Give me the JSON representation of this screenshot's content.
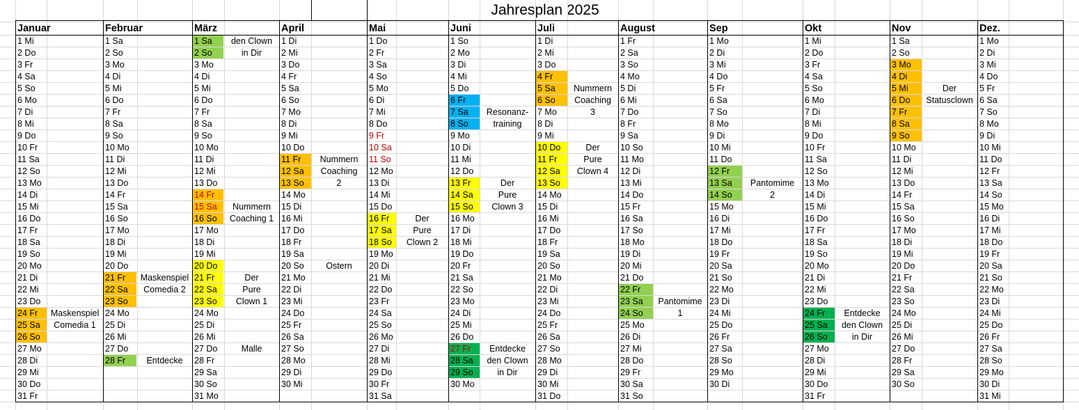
{
  "title": "Jahresplan 2025",
  "colors": {
    "orange": "#ffc000",
    "lightgreen": "#92d050",
    "green": "#00b050",
    "yellow": "#ffff00",
    "blue": "#00b0f0",
    "red_text": "#c00000"
  },
  "months": [
    {
      "name": "Januar",
      "days": [
        "1 Mi",
        "2 Do",
        "3 Fr",
        "4 Sa",
        "5 So",
        "6 Mo",
        "7 Di",
        "8 Mi",
        "9 Do",
        "10 Fr",
        "11 Sa",
        "12 So",
        "13 Mo",
        "14 Di",
        "15 Mi",
        "16 Do",
        "17 Fr",
        "18 Sa",
        "19 So",
        "20 Mo",
        "21 Di",
        "22 Mi",
        "23 Do",
        "24 Fr",
        "25 Sa",
        "26 So",
        "27 Mo",
        "28 Di",
        "29 Mi",
        "30 Do",
        "31 Fr"
      ]
    },
    {
      "name": "Februar",
      "days": [
        "1 Sa",
        "2 So",
        "3 Mo",
        "4 Di",
        "5 Mi",
        "6 Do",
        "7 Fr",
        "8 Sa",
        "9 So",
        "10 Mo",
        "11 Di",
        "12 Mi",
        "13 Do",
        "14 Fr",
        "15 Sa",
        "16 So",
        "17 Mo",
        "18 Di",
        "19 Mi",
        "20 Do",
        "21 Fr",
        "22 Sa",
        "23 So",
        "24 Mo",
        "25 Di",
        "26 Mi",
        "27 Do",
        "28 Fr"
      ]
    },
    {
      "name": "März",
      "days": [
        "1 Sa",
        "2 So",
        "3 Mo",
        "4 Di",
        "5 Mi",
        "6 Do",
        "7 Fr",
        "8 Sa",
        "9 So",
        "10 Mo",
        "11 Di",
        "12 Mi",
        "13 Do",
        "14 Fr",
        "15 Sa",
        "16 So",
        "17 Mo",
        "18 Di",
        "19 Mi",
        "20 Do",
        "21 Fr",
        "22 Sa",
        "23 So",
        "24 Mo",
        "25 Di",
        "26 Mi",
        "27 Do",
        "28 Fr",
        "29 Sa",
        "30 So",
        "31 Mo"
      ]
    },
    {
      "name": "April",
      "days": [
        "1 Di",
        "2 Mi",
        "3 Do",
        "4 Fr",
        "5 Sa",
        "6  So",
        "7 Mo",
        "8 Di",
        "9 Mi",
        "10 Do",
        "11 Fr",
        "12 Sa",
        "13 So",
        "14 Mo",
        "15 Di",
        "16 Mi",
        "17 Do",
        "18 Fr",
        "19 Sa",
        "20 So",
        "21 Mo",
        "22 Di",
        "23 Mi",
        "24 Do",
        "25 Fr",
        "26 Sa",
        "27 So",
        "28 Mo",
        "29 Di",
        "30 Mi"
      ]
    },
    {
      "name": "Mai",
      "days": [
        "1 Do",
        "2 Fr",
        "3 Sa",
        "4 So",
        "5 Mo",
        "6 Di",
        "7 Mi",
        "8 Do",
        "9 Fr",
        "10 Sa",
        "11 So",
        "12 Mo",
        "13 Di",
        "14 Mi",
        "15 Do",
        "16 Fr",
        "17 Sa",
        "18 So",
        "19 Mo",
        "20 Di",
        "21 Mi",
        "22 Do",
        "23 Fr",
        "24 Sa",
        "25 So",
        "26 Mo",
        "27 Di",
        "28 Mi",
        "29 Do",
        "30 Fr",
        "31 Sa"
      ]
    },
    {
      "name": "Juni",
      "days": [
        "1 So",
        "2 Mo",
        "3 Di",
        "4 Mi",
        "5 Do",
        "6 Fr",
        "7 Sa",
        "8 So",
        "9 Mo",
        "10 Di",
        "11 Mi",
        "12 Do",
        "13 Fr",
        "14 Sa",
        "15 So",
        "16 Mo",
        "17 Di",
        "18 Mi",
        "19 Do",
        "20 Fr",
        "21 Sa",
        "22 So",
        "23 Mo",
        "24 Di",
        "25 Mi",
        "26 Do",
        "27 Fr",
        "28 Sa",
        "29 So",
        "30 Mo"
      ]
    },
    {
      "name": "Juli",
      "days": [
        "1 Di",
        "2 Mi",
        "3 Do",
        "4 Fr",
        "5 Sa",
        "6  So",
        "7 Mo",
        "8 Di",
        "9 Mi",
        "10 Do",
        "11 Fr",
        "12 Sa",
        "13 So",
        "14 Mo",
        "15 Di",
        "16 Mi",
        "17 Do",
        "18 Fr",
        "19 Sa",
        "20 So",
        "21 Mo",
        "22 Di",
        "23 Mi",
        "24 Do",
        "25 Fr",
        "26 Sa",
        "27 So",
        "28 Mo",
        "29 Di",
        "30 Mi",
        "31 Do"
      ]
    },
    {
      "name": "August",
      "days": [
        "1 Fr",
        "2 Sa",
        "3 So",
        "4 Mo",
        "5 Di",
        "6 Mi",
        "7 Do",
        "8 Fr",
        "9 Sa",
        "10 So",
        "11 Mo",
        "12 Di",
        "13 Mi",
        "14 Do",
        "15 Fr",
        "16 Sa",
        "17 So",
        "18 Mo",
        "19 Di",
        "20 Mi",
        "21 Do",
        "22 Fr",
        "23 Sa",
        "24 So",
        "25 Mo",
        "26 Di",
        "27 Mi",
        "28 Do",
        "29 Fr",
        "30 Sa",
        "31 So"
      ]
    },
    {
      "name": "Sep",
      "days": [
        "1 Mo",
        "2 Di",
        "3 Mi",
        "4 Do",
        "5 Fr",
        "6 Sa",
        "7 So",
        "8 Mo",
        "9 Di",
        "10 Mi",
        "11 Do",
        "12 Fr",
        "13 Sa",
        "14 So",
        "15 Mo",
        "16 Di",
        "17 Mi",
        "18 Do",
        "19 Fr",
        "20 Sa",
        "21 So",
        "22 Mo",
        "23 Di",
        "24 Mi",
        "25 Do",
        "26 Fr",
        "27 Sa",
        "28 So",
        "29 Mo",
        "30 Di"
      ]
    },
    {
      "name": "Okt",
      "days": [
        "1 Mi",
        "2 Do",
        "3 Fr",
        "4 Sa",
        "5 So",
        "6 Mo",
        "7 Di",
        "8 Mi",
        "9 Do",
        "10 Fr",
        "11 Sa",
        "12 So",
        "13 Mo",
        "14 Di",
        "15 Mi",
        "16 Do",
        "17 Fr",
        "18 Sa",
        "19 So",
        "20 Mo",
        "21 Di",
        "22 Mi",
        "23 Do",
        "24 Fr",
        "25 Sa",
        "26 So",
        "27 Mo",
        "28 Di",
        "29 Mi",
        "30 Do",
        "31 Fr"
      ]
    },
    {
      "name": "Nov",
      "days": [
        "1 Sa",
        "2 So",
        "3 Mo",
        "4 Di",
        "5 Mi",
        "6 Do",
        "7 Fr",
        "8 Sa",
        "9 So",
        "10 Mo",
        "11 Di",
        "12 Mi",
        "13 Do",
        "14 Fr",
        "15 Sa",
        "16 So",
        "17 Mo",
        "18 Di",
        "19 Mi",
        "20 Do",
        "21 Fr",
        "22 Sa",
        "23 So",
        "24 Mo",
        "25 Di",
        "26 Mi",
        "27 Do",
        "28 Fr",
        "29 Sa",
        "30 So"
      ]
    },
    {
      "name": "Dez.",
      "days": [
        "1 Mo",
        "2 Di",
        "3 Mi",
        "4 Do",
        "5 Fr",
        "6 Sa",
        "7 So",
        "8 Mo",
        "9 Di",
        "10 Mi",
        "11 Do",
        "12 Fr",
        "13 Sa",
        "14 So",
        "15 Mo",
        "16 Di",
        "17 Mi",
        "18 Do",
        "19 Fr",
        "20 Sa",
        "21 So",
        "22 Mo",
        "23 Di",
        "24 Mi",
        "25 Do",
        "26 Fr",
        "27 Sa",
        "28 So",
        "29 Mo",
        "30 Di",
        "31 Mi"
      ]
    }
  ],
  "highlights": [
    {
      "month": 0,
      "days": [
        24,
        25,
        26
      ],
      "color": "orange"
    },
    {
      "month": 1,
      "days": [
        21,
        22,
        23
      ],
      "color": "orange"
    },
    {
      "month": 1,
      "days": [
        28
      ],
      "color": "lightgreen"
    },
    {
      "month": 2,
      "days": [
        1,
        2
      ],
      "color": "lightgreen"
    },
    {
      "month": 2,
      "days": [
        14,
        15,
        16
      ],
      "color": "orange"
    },
    {
      "month": 2,
      "days": [
        20,
        21,
        22,
        23
      ],
      "color": "yellow"
    },
    {
      "month": 3,
      "days": [
        11,
        12,
        13
      ],
      "color": "orange"
    },
    {
      "month": 4,
      "days": [
        16,
        17,
        18
      ],
      "color": "yellow"
    },
    {
      "month": 5,
      "days": [
        6,
        7,
        8
      ],
      "color": "blue"
    },
    {
      "month": 5,
      "days": [
        13,
        14,
        15
      ],
      "color": "yellow"
    },
    {
      "month": 5,
      "days": [
        27,
        28,
        29
      ],
      "color": "green"
    },
    {
      "month": 6,
      "days": [
        4,
        5,
        6
      ],
      "color": "orange"
    },
    {
      "month": 6,
      "days": [
        10,
        11,
        12,
        13
      ],
      "color": "yellow"
    },
    {
      "month": 7,
      "days": [
        22,
        23,
        24
      ],
      "color": "lightgreen"
    },
    {
      "month": 8,
      "days": [
        12,
        13,
        14
      ],
      "color": "lightgreen"
    },
    {
      "month": 9,
      "days": [
        24,
        25,
        26
      ],
      "color": "green"
    },
    {
      "month": 10,
      "days": [
        3,
        4,
        5,
        6,
        7,
        8,
        9
      ],
      "color": "orange"
    }
  ],
  "red_text": [
    {
      "month": 2,
      "days": [
        14,
        15
      ]
    },
    {
      "month": 4,
      "days": [
        9,
        10,
        11
      ]
    },
    {
      "month": 5,
      "days": [
        27
      ]
    }
  ],
  "events": [
    {
      "month": 0,
      "start": 24,
      "lines": [
        "Maskenspiel",
        "Comedia 1"
      ]
    },
    {
      "month": 1,
      "start": 21,
      "lines": [
        "Maskenspiel",
        "Comedia 2"
      ]
    },
    {
      "month": 1,
      "start": 28,
      "lines": [
        "Entdecke"
      ]
    },
    {
      "month": 2,
      "start": 1,
      "lines": [
        "den Clown",
        "in Dir"
      ]
    },
    {
      "month": 2,
      "start": 15,
      "lines": [
        "Nummern",
        "Coaching 1"
      ]
    },
    {
      "month": 2,
      "start": 21,
      "lines": [
        "Der",
        "Pure",
        "Clown 1"
      ]
    },
    {
      "month": 2,
      "start": 27,
      "lines": [
        "Malle"
      ]
    },
    {
      "month": 3,
      "start": 11,
      "lines": [
        "Nummern",
        "Coaching",
        "2"
      ]
    },
    {
      "month": 3,
      "start": 20,
      "lines": [
        "Ostern"
      ]
    },
    {
      "month": 4,
      "start": 16,
      "lines": [
        "Der",
        "Pure",
        "Clown 2"
      ]
    },
    {
      "month": 5,
      "start": 7,
      "lines": [
        "Resonanz-",
        "training"
      ]
    },
    {
      "month": 5,
      "start": 13,
      "lines": [
        "Der",
        "Pure",
        "Clown 3"
      ]
    },
    {
      "month": 5,
      "start": 27,
      "lines": [
        "Entdecke",
        "den Clown",
        "in Dir"
      ]
    },
    {
      "month": 6,
      "start": 5,
      "lines": [
        "Nummern",
        "Coaching",
        "3"
      ]
    },
    {
      "month": 6,
      "start": 10,
      "lines": [
        "Der",
        "Pure",
        "Clown 4"
      ]
    },
    {
      "month": 7,
      "start": 23,
      "lines": [
        "Pantomime",
        "1"
      ]
    },
    {
      "month": 8,
      "start": 13,
      "lines": [
        "Pantomime",
        "2"
      ]
    },
    {
      "month": 9,
      "start": 24,
      "lines": [
        "Entdecke",
        "den Clown",
        "in Dir"
      ]
    },
    {
      "month": 10,
      "start": 5,
      "lines": [
        "Der",
        "Statusclown"
      ]
    }
  ]
}
